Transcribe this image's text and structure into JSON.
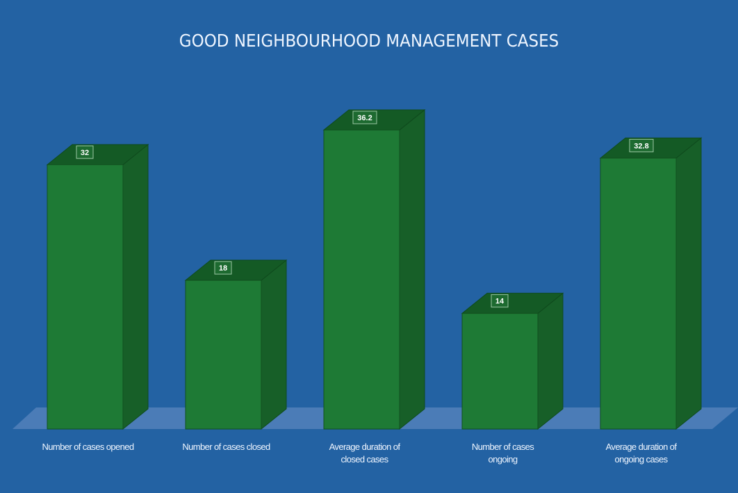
{
  "chart_data": {
    "type": "bar",
    "title": "GOOD NEIGHBOURHOOD MANAGEMENT CASES",
    "categories": [
      "Number of cases opened",
      "Number of cases closed",
      "Average duration of closed cases",
      "Number of cases ongoing",
      "Average duration of ongoing cases"
    ],
    "category_lines": [
      [
        "Number of cases opened"
      ],
      [
        "Number of cases closed"
      ],
      [
        "Average duration of",
        "closed cases"
      ],
      [
        "Number of cases",
        "ongoing"
      ],
      [
        "Average duration of",
        "ongoing cases"
      ]
    ],
    "values": [
      32,
      18,
      36.2,
      14,
      32.8
    ],
    "value_labels": [
      "32",
      "18",
      "36.2",
      "14",
      "32.8"
    ],
    "xlabel": "",
    "ylabel": "",
    "ylim": [
      0,
      40
    ],
    "grid": false,
    "legend": null,
    "style": "3d-column",
    "colors": {
      "background": "#2362a3",
      "bar_front": "#1e7a35",
      "bar_side": "#175f28",
      "bar_top": "#145a25",
      "floor": "#5a86bd",
      "text": "#f0f6ff"
    }
  }
}
